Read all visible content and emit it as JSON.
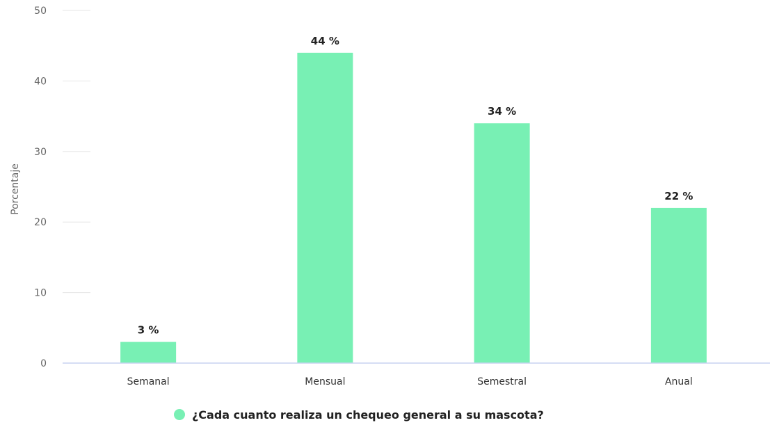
{
  "chart_data": {
    "type": "bar",
    "categories": [
      "Semanal",
      "Mensual",
      "Semestral",
      "Anual"
    ],
    "series": [
      {
        "name": "¿Cada cuanto realiza un chequeo general a su mascota?",
        "values": [
          3,
          44,
          34,
          22
        ],
        "labels": [
          "3 %",
          "44 %",
          "34 %",
          "22 %"
        ],
        "color": "#78f0b4"
      }
    ],
    "ylabel": "Porcentaje",
    "xlabel": "",
    "ylim": [
      0,
      50
    ],
    "yticks": [
      0,
      10,
      20,
      30,
      40,
      50
    ],
    "grid": false,
    "legend_position": "bottom-center",
    "colors": {
      "bar": "#78f0b4",
      "axis_line": "#c8d2f0",
      "tick_mark": "#e6e6e6"
    }
  }
}
